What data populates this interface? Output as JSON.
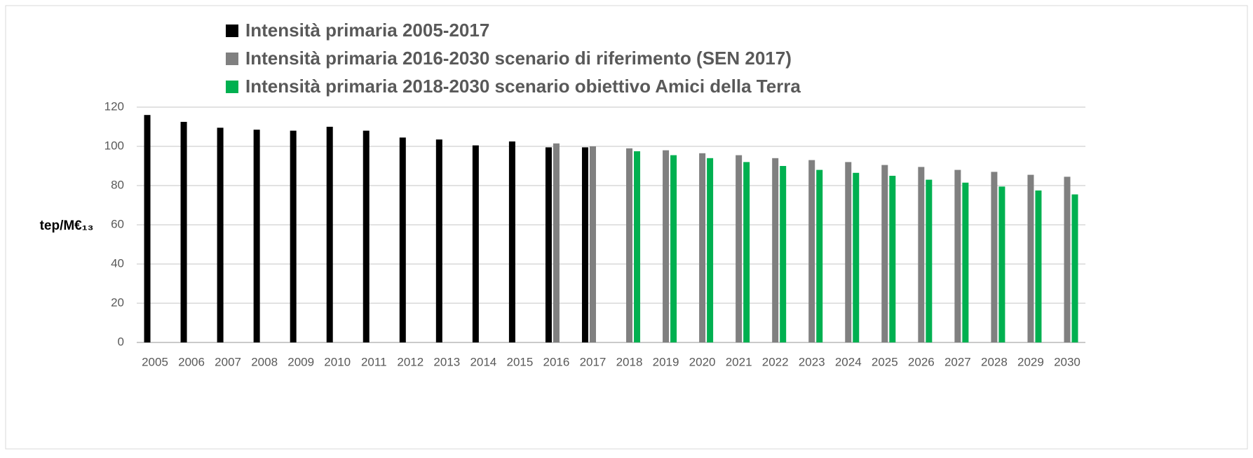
{
  "chart_data": {
    "type": "bar",
    "y_label": "tep/M€₁₃",
    "categories": [
      "2005",
      "2006",
      "2007",
      "2008",
      "2009",
      "2010",
      "2011",
      "2012",
      "2013",
      "2014",
      "2015",
      "2016",
      "2017",
      "2018",
      "2019",
      "2020",
      "2021",
      "2022",
      "2023",
      "2024",
      "2025",
      "2026",
      "2027",
      "2028",
      "2029",
      "2030"
    ],
    "series": [
      {
        "name": "Intensità primaria 2005-2017",
        "color": "#000000",
        "values": [
          116,
          112.5,
          109.5,
          108.5,
          108,
          110,
          108,
          104.5,
          103.5,
          100.5,
          102.5,
          99.5,
          99.5,
          null,
          null,
          null,
          null,
          null,
          null,
          null,
          null,
          null,
          null,
          null,
          null,
          null
        ]
      },
      {
        "name": "Intensità primaria 2016-2030 scenario di riferimento (SEN 2017)",
        "color": "#808080",
        "values": [
          null,
          null,
          null,
          null,
          null,
          null,
          null,
          null,
          null,
          null,
          null,
          101.5,
          100,
          99,
          98,
          96.5,
          95.5,
          94,
          93,
          92,
          90.5,
          89.5,
          88,
          87,
          85.5,
          84.5
        ]
      },
      {
        "name": "Intensità primaria 2018-2030 scenario obiettivo Amici della Terra",
        "color": "#00b050",
        "values": [
          null,
          null,
          null,
          null,
          null,
          null,
          null,
          null,
          null,
          null,
          null,
          null,
          null,
          97.5,
          95.5,
          94,
          92,
          90,
          88,
          86.5,
          85,
          83,
          81.5,
          79.5,
          77.5,
          75.5
        ]
      }
    ],
    "ylim": [
      0,
      120
    ],
    "yticks": [
      0,
      20,
      40,
      60,
      80,
      100,
      120
    ],
    "grid": true,
    "legend": "top"
  }
}
